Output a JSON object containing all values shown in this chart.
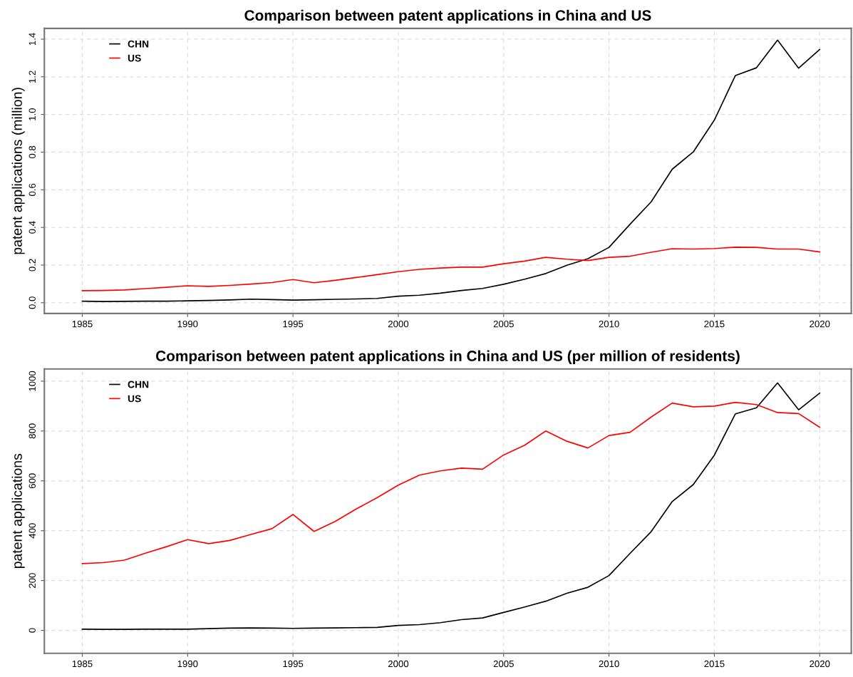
{
  "chart_data": [
    {
      "type": "line",
      "title": "Comparison between patent applications in China and US",
      "ylabel": "patent applications (million)",
      "x": [
        1985,
        1986,
        1987,
        1988,
        1989,
        1990,
        1991,
        1992,
        1993,
        1994,
        1995,
        1996,
        1997,
        1998,
        1999,
        2000,
        2001,
        2002,
        2003,
        2004,
        2005,
        2006,
        2007,
        2008,
        2009,
        2010,
        2011,
        2012,
        2013,
        2014,
        2015,
        2016,
        2017,
        2018,
        2019,
        2020
      ],
      "series": [
        {
          "name": "CHN",
          "color": "#000000",
          "values": [
            0.008,
            0.006,
            0.007,
            0.008,
            0.008,
            0.01,
            0.012,
            0.015,
            0.019,
            0.017,
            0.014,
            0.016,
            0.018,
            0.02,
            0.023,
            0.035,
            0.04,
            0.051,
            0.065,
            0.076,
            0.098,
            0.125,
            0.155,
            0.199,
            0.234,
            0.294,
            0.417,
            0.536,
            0.709,
            0.801,
            0.97,
            1.207,
            1.248,
            1.395,
            1.246,
            1.345
          ]
        },
        {
          "name": "US",
          "color": "#ff0000",
          "values": [
            0.064,
            0.065,
            0.068,
            0.075,
            0.082,
            0.09,
            0.087,
            0.092,
            0.099,
            0.107,
            0.123,
            0.106,
            0.119,
            0.134,
            0.149,
            0.165,
            0.177,
            0.184,
            0.189,
            0.189,
            0.207,
            0.221,
            0.241,
            0.231,
            0.224,
            0.241,
            0.247,
            0.268,
            0.287,
            0.285,
            0.288,
            0.295,
            0.294,
            0.285,
            0.285,
            0.27
          ]
        }
      ],
      "xlim": [
        1983.2,
        2021.5
      ],
      "xticks": [
        1985,
        1990,
        1995,
        2000,
        2005,
        2010,
        2015,
        2020
      ],
      "ylim": [
        -0.057,
        1.457
      ],
      "yticks": [
        {
          "value": 0,
          "label": "0.0"
        },
        0.2,
        0.4,
        0.6,
        0.8,
        {
          "value": 1,
          "label": "1.0"
        },
        1.2,
        1.4
      ],
      "grid": true,
      "legend": "top left",
      "marker": "none",
      "line_style": "solid"
    },
    {
      "type": "line",
      "title": "Comparison between patent applications in China and US (per million of residents)",
      "ylabel": "patent applications",
      "x": [
        1985,
        1986,
        1987,
        1988,
        1989,
        1990,
        1991,
        1992,
        1993,
        1994,
        1995,
        1996,
        1997,
        1998,
        1999,
        2000,
        2001,
        2002,
        2003,
        2004,
        2005,
        2006,
        2007,
        2008,
        2009,
        2010,
        2011,
        2012,
        2013,
        2014,
        2015,
        2016,
        2017,
        2018,
        2019,
        2020
      ],
      "series": [
        {
          "name": "CHN",
          "color": "#000000",
          "values": [
            5,
            4,
            4,
            5,
            5,
            5,
            7,
            9,
            10,
            9,
            8,
            9,
            10,
            11,
            12,
            20,
            23,
            31,
            43,
            50,
            72,
            94,
            117,
            149,
            173,
            220,
            309,
            396,
            517,
            585,
            703,
            869,
            893,
            993,
            885,
            952
          ]
        },
        {
          "name": "US",
          "color": "#ff0000",
          "values": [
            268,
            272,
            282,
            310,
            336,
            364,
            348,
            361,
            385,
            408,
            465,
            397,
            437,
            487,
            533,
            583,
            623,
            640,
            651,
            647,
            704,
            743,
            800,
            759,
            732,
            782,
            795,
            856,
            912,
            897,
            900,
            915,
            906,
            874,
            870,
            815
          ]
        }
      ],
      "xlim": [
        1983.2,
        2021.5
      ],
      "xticks": [
        1985,
        1990,
        1995,
        2000,
        2005,
        2010,
        2015,
        2020
      ],
      "ylim": [
        -92,
        1049
      ],
      "yticks": [
        0,
        200,
        400,
        600,
        800,
        1000
      ],
      "grid": true,
      "legend": "top left",
      "marker": "none",
      "line_style": "solid"
    }
  ]
}
